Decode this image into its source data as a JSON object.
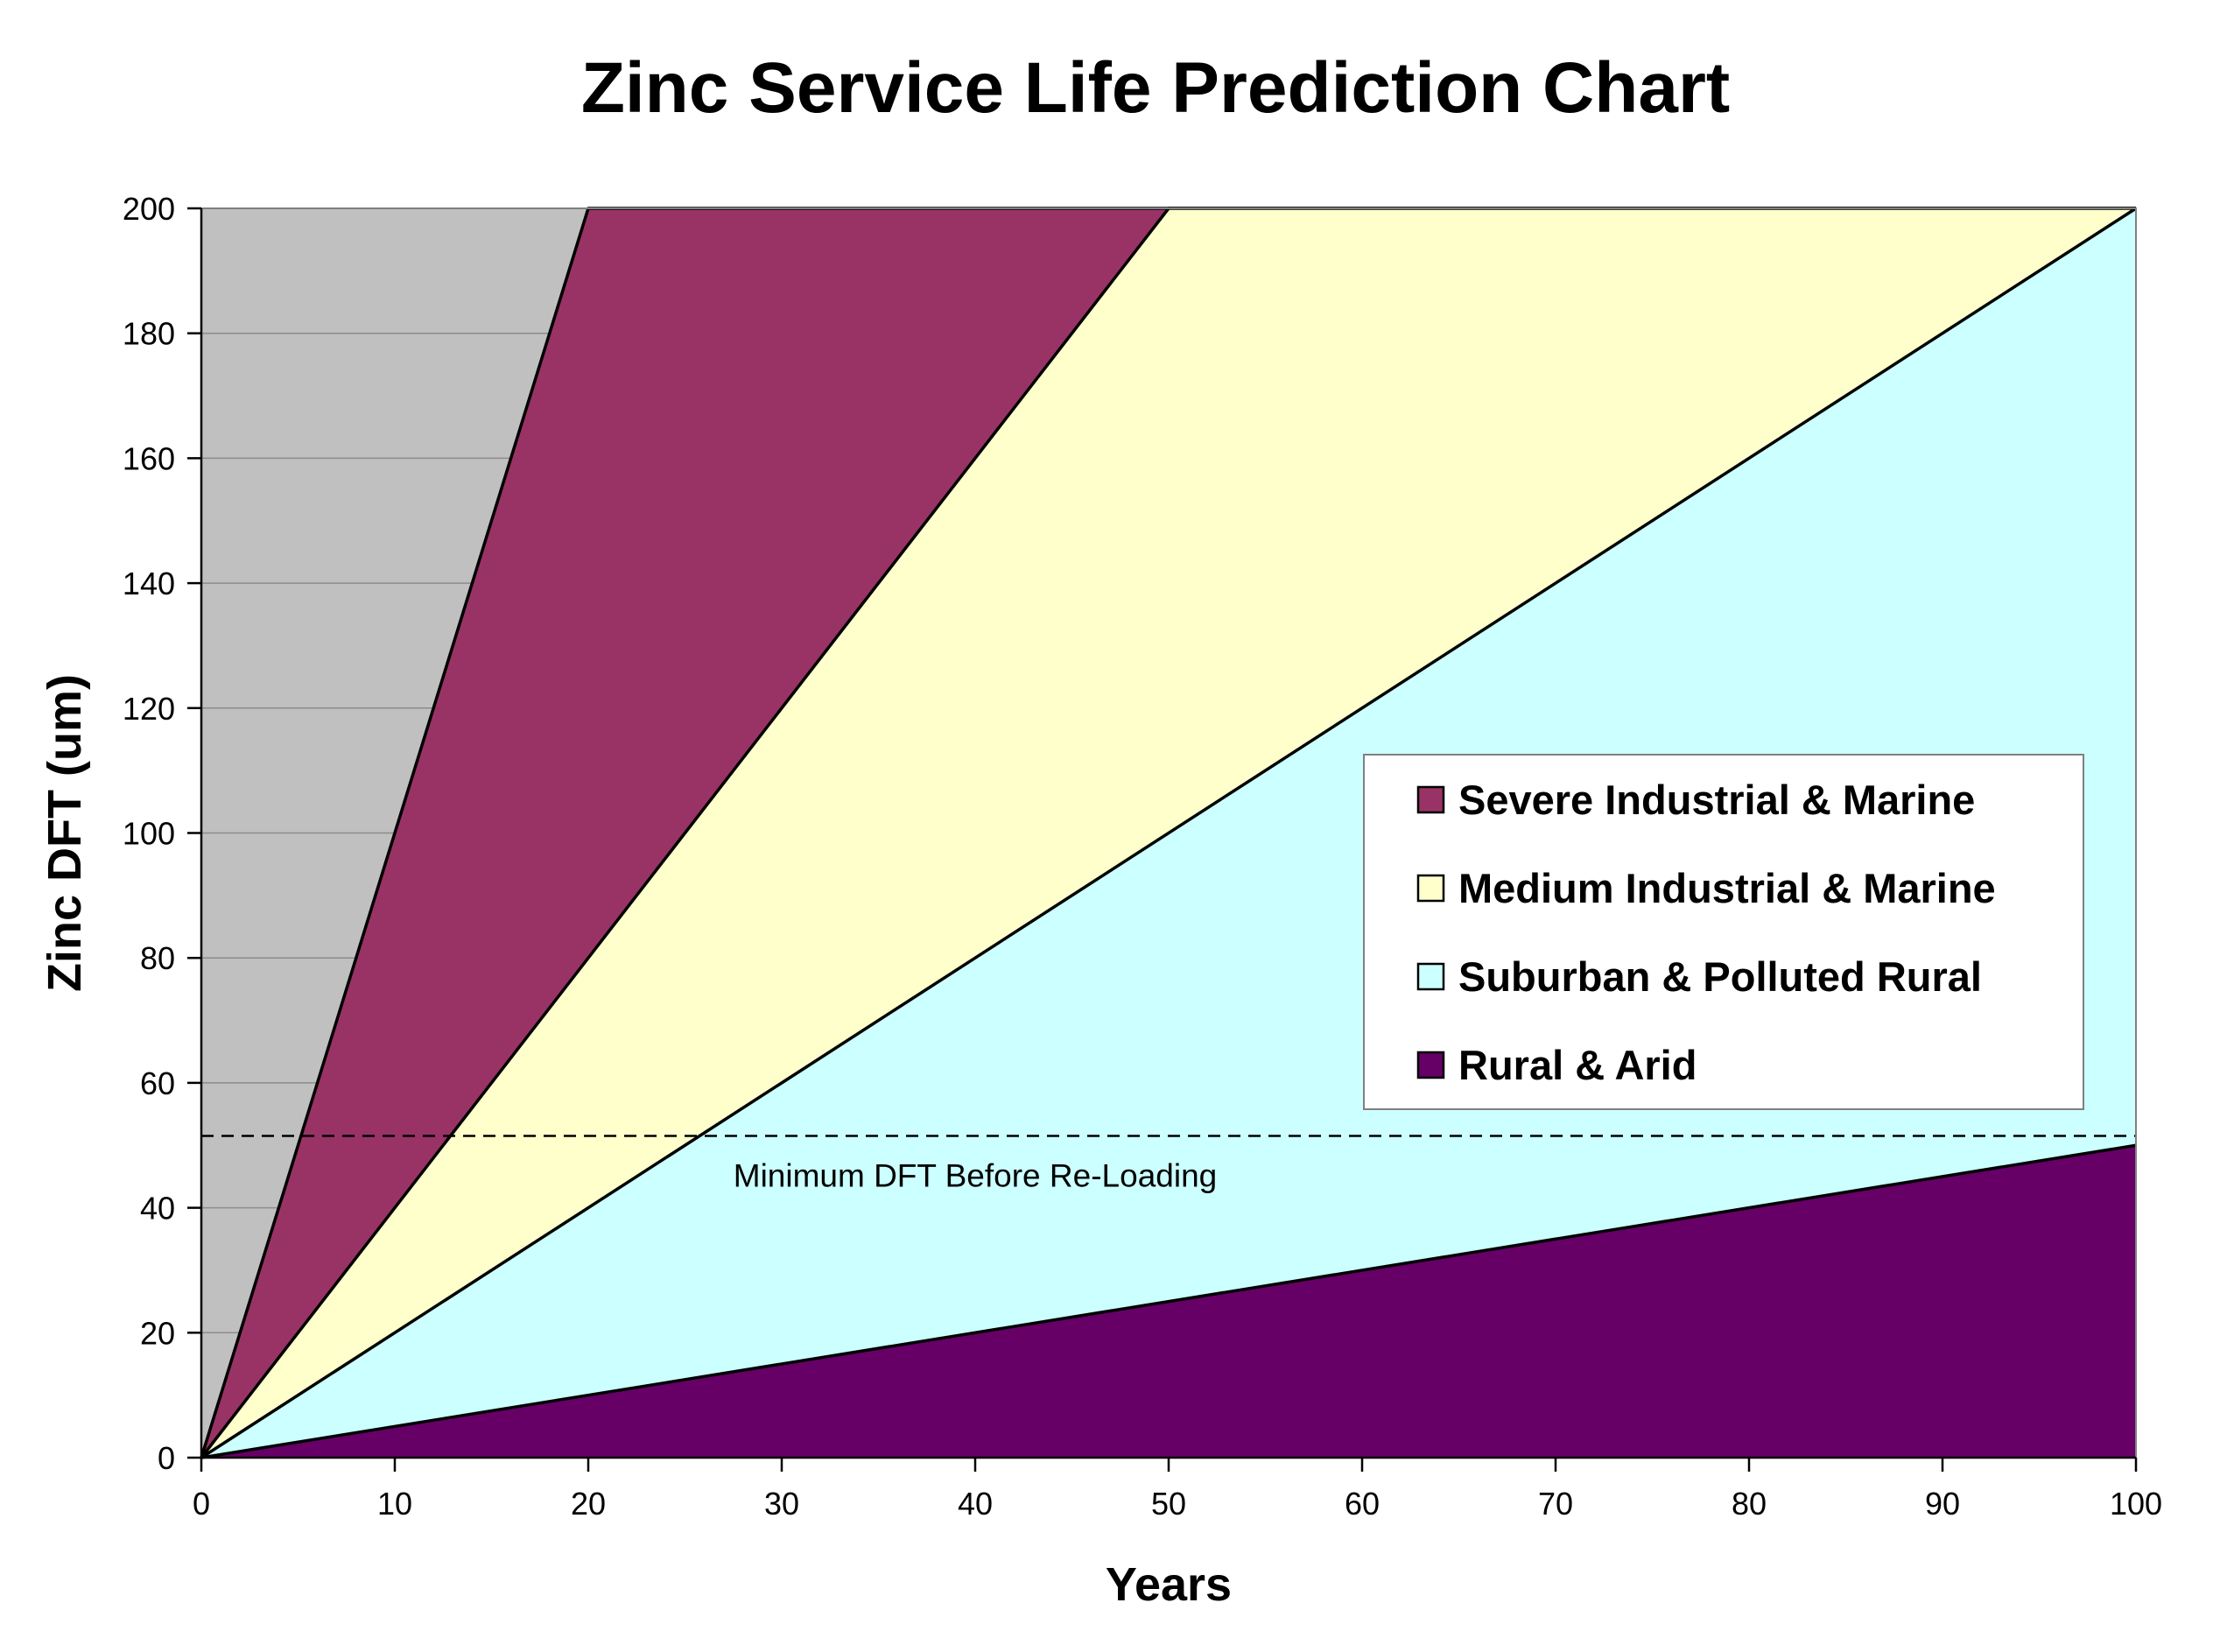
{
  "chart_data": {
    "type": "area",
    "title": "Zinc Service Life Prediction Chart",
    "xlabel": "Years",
    "ylabel": "Zinc DFT (um)",
    "xlim": [
      0,
      100
    ],
    "ylim": [
      0,
      200
    ],
    "xticks": [
      "0",
      "10",
      "20",
      "30",
      "40",
      "50",
      "60",
      "70",
      "80",
      "90",
      "100"
    ],
    "yticks": [
      "0",
      "20",
      "40",
      "60",
      "80",
      "100",
      "120",
      "140",
      "160",
      "180",
      "200"
    ],
    "grid": "horizontal",
    "legend_position": "right",
    "background_color": "#c0c0c0",
    "series": [
      {
        "name": "Severe Industrial & Marine",
        "color": "#993366",
        "x": [
          0,
          20,
          100
        ],
        "y": [
          0,
          200,
          200
        ]
      },
      {
        "name": "Medium Industrial & Marine",
        "color": "#ffffcc",
        "x": [
          0,
          50,
          100
        ],
        "y": [
          0,
          200,
          200
        ]
      },
      {
        "name": "Suburban & Polluted Rural",
        "color": "#ccffff",
        "x": [
          0,
          100
        ],
        "y": [
          0,
          200
        ]
      },
      {
        "name": "Rural & Arid",
        "color": "#660066",
        "x": [
          0,
          100
        ],
        "y": [
          0,
          50
        ]
      }
    ],
    "reference_line": {
      "y": 51.5,
      "style": "dashed",
      "label": "Minimum DFT Before Re-Loading"
    }
  }
}
